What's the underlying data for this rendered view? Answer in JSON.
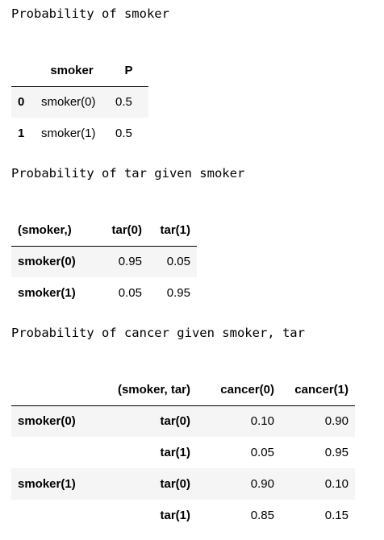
{
  "sections": {
    "smoker": {
      "title": "Probability of smoker",
      "columns": [
        "smoker",
        "P"
      ],
      "rows": [
        {
          "index": "0",
          "smoker": "smoker(0)",
          "p": "0.5"
        },
        {
          "index": "1",
          "smoker": "smoker(1)",
          "p": "0.5"
        }
      ]
    },
    "tar": {
      "title": "Probability of tar given smoker",
      "columns": [
        "(smoker,)",
        "tar(0)",
        "tar(1)"
      ],
      "rows": [
        {
          "index": "smoker(0)",
          "tar0": "0.95",
          "tar1": "0.05"
        },
        {
          "index": "smoker(1)",
          "tar0": "0.05",
          "tar1": "0.95"
        }
      ]
    },
    "cancer": {
      "title": "Probability of cancer given smoker, tar",
      "columns": [
        "(smoker, tar)",
        "cancer(0)",
        "cancer(1)"
      ],
      "rows": [
        {
          "smoker": "smoker(0)",
          "tar": "tar(0)",
          "cancer0": "0.10",
          "cancer1": "0.90"
        },
        {
          "smoker": "",
          "tar": "tar(1)",
          "cancer0": "0.05",
          "cancer1": "0.95"
        },
        {
          "smoker": "smoker(1)",
          "tar": "tar(0)",
          "cancer0": "0.90",
          "cancer1": "0.10"
        },
        {
          "smoker": "",
          "tar": "tar(1)",
          "cancer0": "0.85",
          "cancer1": "0.15"
        }
      ]
    }
  }
}
